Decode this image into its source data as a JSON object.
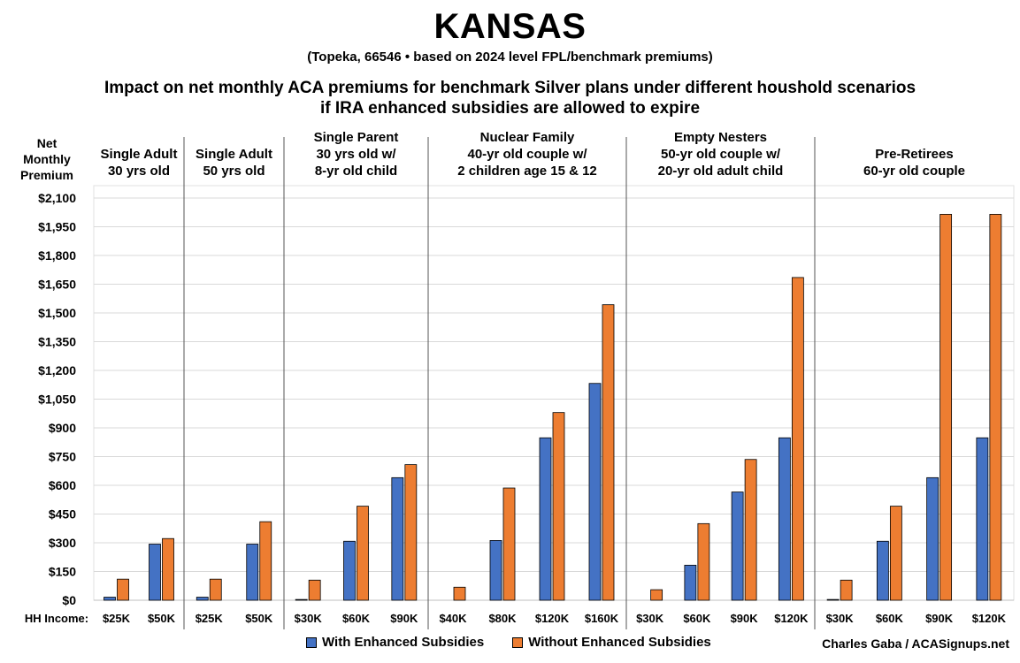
{
  "title": "KANSAS",
  "subtitle1": "(Topeka, 66546 • based on 2024 level FPL/benchmark premiums)",
  "subtitle2_line1": "Impact on net monthly ACA premiums for benchmark Silver plans under different houshold scenarios",
  "subtitle2_line2": "if IRA enhanced subsidies are allowed to expire",
  "ylabel_lines": [
    "Net",
    "Monthly",
    "Premium"
  ],
  "credit": "Charles Gaba / ACASignups.net",
  "colors": {
    "with": "#4472C4",
    "without": "#ED7D31",
    "grid": "#d9d9d9",
    "divider": "#555555"
  },
  "chart_data": {
    "type": "bar",
    "xlabel": "HH Income:",
    "ylabel": "Net Monthly Premium",
    "ylim": [
      0,
      2100
    ],
    "yticks": [
      0,
      150,
      300,
      450,
      600,
      750,
      900,
      1050,
      1200,
      1350,
      1500,
      1650,
      1800,
      1950,
      2100
    ],
    "ytick_labels": [
      "$0",
      "$150",
      "$300",
      "$450",
      "$600",
      "$750",
      "$900",
      "$1,050",
      "$1,200",
      "$1,350",
      "$1,500",
      "$1,650",
      "$1,800",
      "$1,950",
      "$2,100"
    ],
    "legend": [
      "With Enhanced Subsidies",
      "Without Enhanced Subsidies"
    ],
    "legend_position": "bottom",
    "groups": [
      {
        "label": [
          "Single Adult",
          "30 yrs old"
        ],
        "categories": [
          "$25K",
          "$50K"
        ],
        "with": [
          16,
          293
        ],
        "without": [
          110,
          322
        ]
      },
      {
        "label": [
          "Single Adult",
          "50 yrs old"
        ],
        "categories": [
          "$25K",
          "$50K"
        ],
        "with": [
          16,
          293
        ],
        "without": [
          110,
          410
        ]
      },
      {
        "label": [
          "Single Parent",
          "30 yrs old w/",
          "8-yr old child"
        ],
        "categories": [
          "$30K",
          "$60K",
          "$90K"
        ],
        "with": [
          4,
          308
        ],
        "without": [
          105,
          491
        ],
        "with_all": [
          4,
          308,
          640
        ],
        "without_all": [
          105,
          491,
          708
        ]
      },
      {
        "label": [
          "Nuclear Family",
          "40-yr old couple w/",
          "2 children age 15 & 12"
        ],
        "categories": [
          "$40K",
          "$80K",
          "$120K",
          "$160K"
        ],
        "with": [
          0,
          312,
          848,
          1132
        ],
        "without": [
          68,
          586,
          980,
          1543
        ]
      },
      {
        "label": [
          "Empty Nesters",
          "50-yr old couple w/",
          "20-yr old adult child"
        ],
        "categories": [
          "$30K",
          "$60K",
          "$90K",
          "$120K"
        ],
        "with": [
          0,
          183,
          565,
          848
        ],
        "without": [
          55,
          400,
          735,
          1685
        ]
      },
      {
        "label": [
          "Pre-Retirees",
          "60-yr old couple"
        ],
        "categories": [
          "$30K",
          "$60K",
          "$90K",
          "$120K"
        ],
        "with": [
          4,
          308,
          640,
          848
        ],
        "without": [
          105,
          491,
          2015,
          2015
        ]
      }
    ]
  }
}
